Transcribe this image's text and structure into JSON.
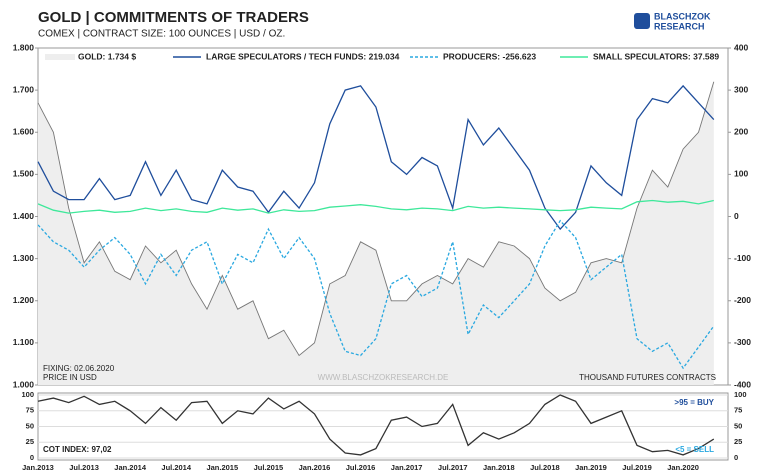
{
  "title": "GOLD | COMMITMENTS OF TRADERS",
  "subtitle": "COMEX | CONTRACT SIZE: 100 OUNCES | USD / OZ.",
  "logo": {
    "line1": "BLASCHZOK",
    "line2": "RESEARCH"
  },
  "chart_data": [
    {
      "type": "line",
      "ylim": [
        1000,
        1800
      ],
      "yticks": [
        {
          "value": 1000,
          "label": "1.000"
        },
        {
          "value": 1100,
          "label": "1.100"
        },
        {
          "value": 1200,
          "label": "1.200"
        },
        {
          "value": 1300,
          "label": "1.300"
        },
        {
          "value": 1400,
          "label": "1.400"
        },
        {
          "value": 1500,
          "label": "1.500"
        },
        {
          "value": 1600,
          "label": "1.600"
        },
        {
          "value": 1700,
          "label": "1.700"
        },
        {
          "value": 1800,
          "label": "1.800"
        }
      ],
      "y2lim": [
        -400,
        400
      ],
      "y2ticks": [
        -400,
        -300,
        -200,
        -100,
        0,
        100,
        200,
        300,
        400
      ],
      "annotations": {
        "fixing": "FIXING: 02.06.2020",
        "unit": "PRICE IN USD",
        "website": "WWW.BLASCHZOKRESEARCH.DE",
        "contracts": "THOUSAND FUTURES CONTRACTS"
      },
      "series": [
        {
          "name": "GOLD: 1.734 $",
          "color": "#777777",
          "fill": "#eeeeee",
          "axis": "y",
          "values": [
            1670,
            1600,
            1420,
            1290,
            1340,
            1270,
            1250,
            1330,
            1290,
            1320,
            1240,
            1180,
            1260,
            1180,
            1200,
            1110,
            1130,
            1070,
            1100,
            1240,
            1260,
            1340,
            1320,
            1200,
            1200,
            1240,
            1260,
            1240,
            1300,
            1280,
            1340,
            1330,
            1300,
            1230,
            1200,
            1220,
            1290,
            1300,
            1290,
            1420,
            1510,
            1470,
            1560,
            1600,
            1720
          ]
        },
        {
          "name": "LARGE SPECULATORS / TECH FUNDS: 219.034",
          "color": "#1f4e9c",
          "axis": "y2",
          "values": [
            130,
            60,
            40,
            40,
            90,
            40,
            50,
            130,
            50,
            110,
            40,
            30,
            110,
            70,
            60,
            10,
            60,
            20,
            80,
            220,
            300,
            310,
            260,
            130,
            100,
            140,
            120,
            20,
            230,
            170,
            210,
            160,
            110,
            20,
            -30,
            10,
            120,
            80,
            50,
            230,
            280,
            270,
            310,
            270,
            230
          ]
        },
        {
          "name": "PRODUCERS: -256.623",
          "color": "#29a8e0",
          "dashed": true,
          "axis": "y2",
          "values": [
            -20,
            -60,
            -80,
            -120,
            -80,
            -50,
            -90,
            -160,
            -90,
            -140,
            -80,
            -60,
            -160,
            -90,
            -110,
            -30,
            -100,
            -50,
            -100,
            -230,
            -320,
            -330,
            -290,
            -160,
            -140,
            -190,
            -170,
            -60,
            -280,
            -210,
            -240,
            -200,
            -160,
            -70,
            -10,
            -50,
            -150,
            -120,
            -90,
            -290,
            -320,
            -300,
            -360,
            -310,
            -260
          ]
        },
        {
          "name": "SMALL SPECULATORS: 37.589",
          "color": "#3ee89a",
          "axis": "y2",
          "values": [
            30,
            15,
            8,
            12,
            15,
            10,
            12,
            20,
            14,
            18,
            12,
            10,
            20,
            15,
            18,
            8,
            16,
            12,
            14,
            22,
            25,
            28,
            24,
            18,
            16,
            20,
            18,
            14,
            24,
            20,
            22,
            20,
            18,
            16,
            14,
            16,
            22,
            20,
            18,
            35,
            38,
            34,
            36,
            30,
            38
          ]
        }
      ]
    },
    {
      "type": "line",
      "ylim": [
        0,
        100
      ],
      "yticks": [
        0,
        25,
        50,
        75,
        100
      ],
      "annotations": {
        "buy": ">95 = BUY",
        "sell": "<5 = SELL",
        "index": "COT INDEX: 97,02"
      },
      "categories": [
        "Jan.2013",
        null,
        null,
        "Jul.2013",
        null,
        null,
        "Jan.2014",
        null,
        null,
        "Jul.2014",
        null,
        null,
        "Jan.2015",
        null,
        null,
        "Jul.2015",
        null,
        null,
        "Jan.2016",
        null,
        null,
        "Jul.2016",
        null,
        null,
        "Jan.2017",
        null,
        null,
        "Jul.2017",
        null,
        null,
        "Jan.2018",
        null,
        null,
        "Jul.2018",
        null,
        null,
        "Jan.2019",
        null,
        null,
        "Jul.2019",
        null,
        null,
        "Jan.2020",
        null,
        null
      ],
      "series": [
        {
          "name": null,
          "color": "#333333",
          "values": [
            90,
            95,
            88,
            98,
            85,
            90,
            75,
            55,
            80,
            60,
            88,
            90,
            55,
            75,
            70,
            95,
            78,
            90,
            70,
            30,
            8,
            5,
            15,
            60,
            65,
            50,
            55,
            85,
            20,
            40,
            30,
            40,
            55,
            85,
            100,
            90,
            55,
            65,
            75,
            20,
            10,
            12,
            5,
            15,
            30
          ]
        }
      ]
    }
  ]
}
